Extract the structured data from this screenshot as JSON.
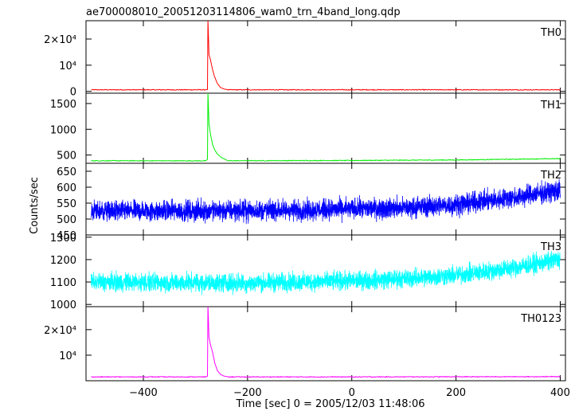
{
  "chart_data": {
    "type": "line",
    "title": "ae700008010_20051203114806_wam0_trn_4band_long.qdp",
    "xlabel": "Time [sec] 0 = 2005/12/03 11:48:06",
    "ylabel": "Counts/sec",
    "x_ticks": [
      "−400",
      "−200",
      "0",
      "200",
      "400"
    ],
    "xlim": [
      -510,
      410
    ],
    "x_tick_values": [
      -400,
      -200,
      0,
      200,
      400
    ],
    "time_range": [
      -500,
      400
    ],
    "burst_time": -276,
    "grid": false,
    "panels": [
      {
        "name": "TH0",
        "color": "#ff0000",
        "ylim": [
          -700,
          27000
        ],
        "y_ticks": [
          {
            "value": 0,
            "label": "0"
          },
          {
            "value": 10000,
            "label": "10⁴"
          },
          {
            "value": 20000,
            "label": "2×10⁴"
          }
        ],
        "series": {
          "baseline": [
            [
              -500,
              600
            ],
            [
              -300,
              600
            ],
            [
              0,
              600
            ],
            [
              200,
              600
            ],
            [
              400,
              600
            ]
          ],
          "burst": [
            [
              -280,
              600
            ],
            [
              -277,
              700
            ],
            [
              -276,
              27000
            ],
            [
              -274,
              14000
            ],
            [
              -271,
              12000
            ],
            [
              -268,
              9000
            ],
            [
              -264,
              6000
            ],
            [
              -258,
              3000
            ],
            [
              -252,
              1500
            ],
            [
              -245,
              900
            ],
            [
              -238,
              650
            ]
          ]
        }
      },
      {
        "name": "TH1",
        "color": "#00ee00",
        "ylim": [
          340,
          1700
        ],
        "y_ticks": [
          {
            "value": 500,
            "label": "500"
          },
          {
            "value": 1000,
            "label": "1000"
          },
          {
            "value": 1500,
            "label": "1500"
          }
        ],
        "series": {
          "baseline": [
            [
              -500,
              390
            ],
            [
              -300,
              388
            ],
            [
              0,
              395
            ],
            [
              200,
              405
            ],
            [
              400,
              430
            ]
          ],
          "burst": [
            [
              -280,
              390
            ],
            [
              -277,
              420
            ],
            [
              -276,
              1700
            ],
            [
              -274,
              1100
            ],
            [
              -271,
              900
            ],
            [
              -267,
              700
            ],
            [
              -263,
              600
            ],
            [
              -258,
              520
            ],
            [
              -250,
              450
            ],
            [
              -240,
              400
            ]
          ]
        }
      },
      {
        "name": "TH2",
        "color": "#0000ff",
        "ylim": [
          450,
          675
        ],
        "y_ticks": [
          {
            "value": 450,
            "label": "450"
          },
          {
            "value": 500,
            "label": "500"
          },
          {
            "value": 550,
            "label": "550"
          },
          {
            "value": 600,
            "label": "600"
          },
          {
            "value": 650,
            "label": "650"
          }
        ],
        "series": {
          "baseline": [
            [
              -500,
              525
            ],
            [
              -300,
              525
            ],
            [
              -100,
              528
            ],
            [
              100,
              535
            ],
            [
              200,
              545
            ],
            [
              300,
              565
            ],
            [
              400,
              590
            ]
          ],
          "noise_amplitude": 35
        }
      },
      {
        "name": "TH3",
        "color": "#00ffff",
        "ylim": [
          990,
          1310
        ],
        "y_ticks": [
          {
            "value": 1000,
            "label": "1000"
          },
          {
            "value": 1100,
            "label": "1100"
          },
          {
            "value": 1200,
            "label": "1200"
          },
          {
            "value": 1300,
            "label": "1300"
          }
        ],
        "series": {
          "baseline": [
            [
              -500,
              1100
            ],
            [
              -200,
              1095
            ],
            [
              0,
              1105
            ],
            [
              100,
              1115
            ],
            [
              200,
              1130
            ],
            [
              300,
              1160
            ],
            [
              400,
              1200
            ]
          ],
          "noise_amplitude": 45
        }
      },
      {
        "name": "TH0123",
        "color": "#ff00ff",
        "ylim": [
          0,
          29000
        ],
        "y_ticks": [
          {
            "value": 10000,
            "label": "10⁴"
          },
          {
            "value": 20000,
            "label": "2×10⁴"
          }
        ],
        "series": {
          "baseline": [
            [
              -500,
              1500
            ],
            [
              0,
              1500
            ],
            [
              400,
              1600
            ]
          ],
          "burst": [
            [
              -280,
              1500
            ],
            [
              -277,
              1800
            ],
            [
              -276,
              29000
            ],
            [
              -274,
              17000
            ],
            [
              -271,
              14000
            ],
            [
              -267,
              11000
            ],
            [
              -263,
              7000
            ],
            [
              -258,
              4000
            ],
            [
              -252,
              2500
            ],
            [
              -245,
              1800
            ],
            [
              -238,
              1550
            ]
          ]
        }
      }
    ]
  }
}
